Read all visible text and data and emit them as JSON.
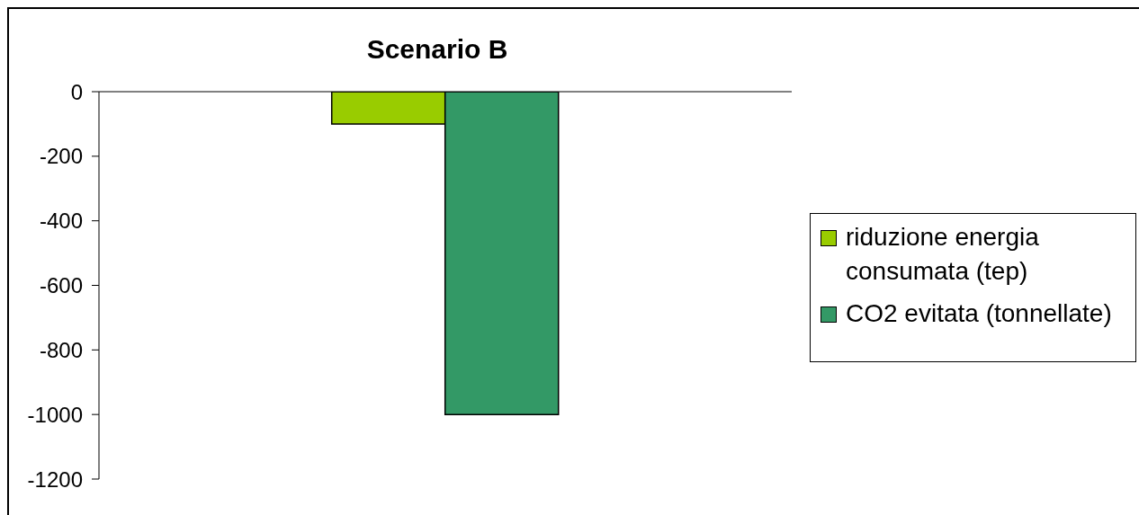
{
  "chart_data": {
    "type": "bar",
    "title": "Scenario B",
    "categories": [
      null
    ],
    "series": [
      {
        "name": "riduzione energia consumata (tep)",
        "color": "#99cc00",
        "values": [
          -100
        ]
      },
      {
        "name": "CO2 evitata (tonnellate)",
        "color": "#339966",
        "values": [
          -1000
        ]
      }
    ],
    "ylim": [
      -1200,
      0
    ],
    "yticks": [
      -1200,
      -1000,
      -800,
      -600,
      -400,
      -200,
      0
    ],
    "grid": false,
    "legend": "right"
  }
}
